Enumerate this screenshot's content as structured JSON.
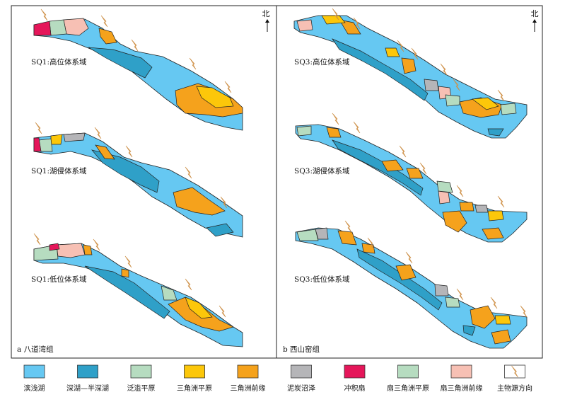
{
  "panels": [
    {
      "caption": "a 八道湾组",
      "north": "北",
      "maps": [
        {
          "label": "SQ1:高位体系域"
        },
        {
          "label": "SQ1:湖侵体系域"
        },
        {
          "label": "SQ1:低位体系域"
        }
      ]
    },
    {
      "caption": "b 西山窑组",
      "north": "北",
      "maps": [
        {
          "label": "SQ3:高位体系域"
        },
        {
          "label": "SQ3:湖侵体系域"
        },
        {
          "label": "SQ3:低位体系域"
        }
      ]
    }
  ],
  "legend": [
    {
      "label": "滨浅湖",
      "color": "#66c8f2"
    },
    {
      "label": "深湖—半深湖",
      "color": "#2fa0c8"
    },
    {
      "label": "泛滥平原",
      "color": "#b6dcc0"
    },
    {
      "label": "三角洲平原",
      "color": "#fcc70a"
    },
    {
      "label": "三角洲前缘",
      "color": "#f5a21c"
    },
    {
      "label": "泥炭沼泽",
      "color": "#b5b5b8"
    },
    {
      "label": "冲积扇",
      "color": "#e5165a"
    },
    {
      "label": "扇三角洲平原",
      "color": "#b6dcc0"
    },
    {
      "label": "扇三角洲前缘",
      "color": "#f7c0b4"
    },
    {
      "label": "主物源方向",
      "color": "#ffffff"
    }
  ]
}
